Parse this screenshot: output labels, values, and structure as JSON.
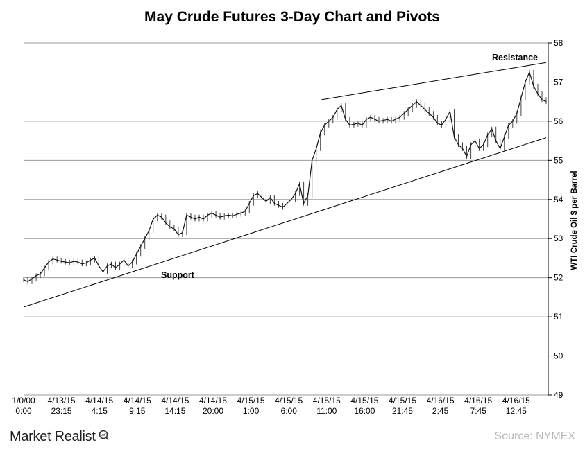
{
  "chart_data": {
    "type": "line",
    "title": "May Crude Futures 3-Day Chart and Pivots",
    "ylabel": "WTI Crude  Oil $ per Barrel",
    "xlabel": "",
    "ylim": [
      49,
      58
    ],
    "yticks": [
      49,
      50,
      51,
      52,
      53,
      54,
      55,
      56,
      57,
      58
    ],
    "grid": true,
    "x_tick_labels": [
      [
        "1/0/00",
        "0:00"
      ],
      [
        "4/13/15",
        "23:15"
      ],
      [
        "4/14/15",
        "4:15"
      ],
      [
        "4/14/15",
        "9:15"
      ],
      [
        "4/14/15",
        "14:15"
      ],
      [
        "4/14/15",
        "20:00"
      ],
      [
        "4/15/15",
        "1:00"
      ],
      [
        "4/15/15",
        "6:00"
      ],
      [
        "4/15/15",
        "11:00"
      ],
      [
        "4/15/15",
        "16:00"
      ],
      [
        "4/15/15",
        "21:45"
      ],
      [
        "4/16/15",
        "2:45"
      ],
      [
        "4/16/15",
        "7:45"
      ],
      [
        "4/16/15",
        "12:45"
      ]
    ],
    "series": [
      {
        "values": [
          51.95,
          51.9,
          51.97,
          52.05,
          52.1,
          52.25,
          52.4,
          52.48,
          52.45,
          52.42,
          52.4,
          52.38,
          52.42,
          52.4,
          52.35,
          52.38,
          52.45,
          52.5,
          52.3,
          52.15,
          52.3,
          52.35,
          52.25,
          52.35,
          52.45,
          52.3,
          52.4,
          52.6,
          52.8,
          53.0,
          53.2,
          53.5,
          53.6,
          53.55,
          53.4,
          53.3,
          53.25,
          53.1,
          53.15,
          53.6,
          53.55,
          53.5,
          53.55,
          53.5,
          53.6,
          53.65,
          53.6,
          53.55,
          53.58,
          53.6,
          53.58,
          53.62,
          53.65,
          53.7,
          53.9,
          54.1,
          54.15,
          54.05,
          53.95,
          54.05,
          53.9,
          53.85,
          53.8,
          53.9,
          54.0,
          54.15,
          54.4,
          53.9,
          54.1,
          55.0,
          55.3,
          55.7,
          55.9,
          56.0,
          56.1,
          56.3,
          56.4,
          56.05,
          55.9,
          55.92,
          55.95,
          55.9,
          56.05,
          56.1,
          56.05,
          56.0,
          56.02,
          56.05,
          56.0,
          56.05,
          56.1,
          56.2,
          56.3,
          56.4,
          56.5,
          56.4,
          56.3,
          56.2,
          56.1,
          55.95,
          55.9,
          56.05,
          56.25,
          55.6,
          55.4,
          55.3,
          55.1,
          55.4,
          55.5,
          55.3,
          55.4,
          55.65,
          55.8,
          55.5,
          55.3,
          55.6,
          55.9,
          56.0,
          56.2,
          56.6,
          57.0,
          57.25,
          56.9,
          56.7,
          56.55,
          56.5
        ]
      }
    ],
    "annotations": [
      {
        "text": "Resistance"
      },
      {
        "text": "Support"
      }
    ],
    "trendlines": [
      {
        "name": "Resistance",
        "start": [
          0.57,
          56.55
        ],
        "end": [
          1.0,
          57.5
        ]
      },
      {
        "name": "Support",
        "start": [
          0.0,
          51.25
        ],
        "end": [
          1.0,
          55.58
        ]
      }
    ]
  },
  "footer": {
    "brand": "Market Realist",
    "source": "Source: NYMEX"
  }
}
